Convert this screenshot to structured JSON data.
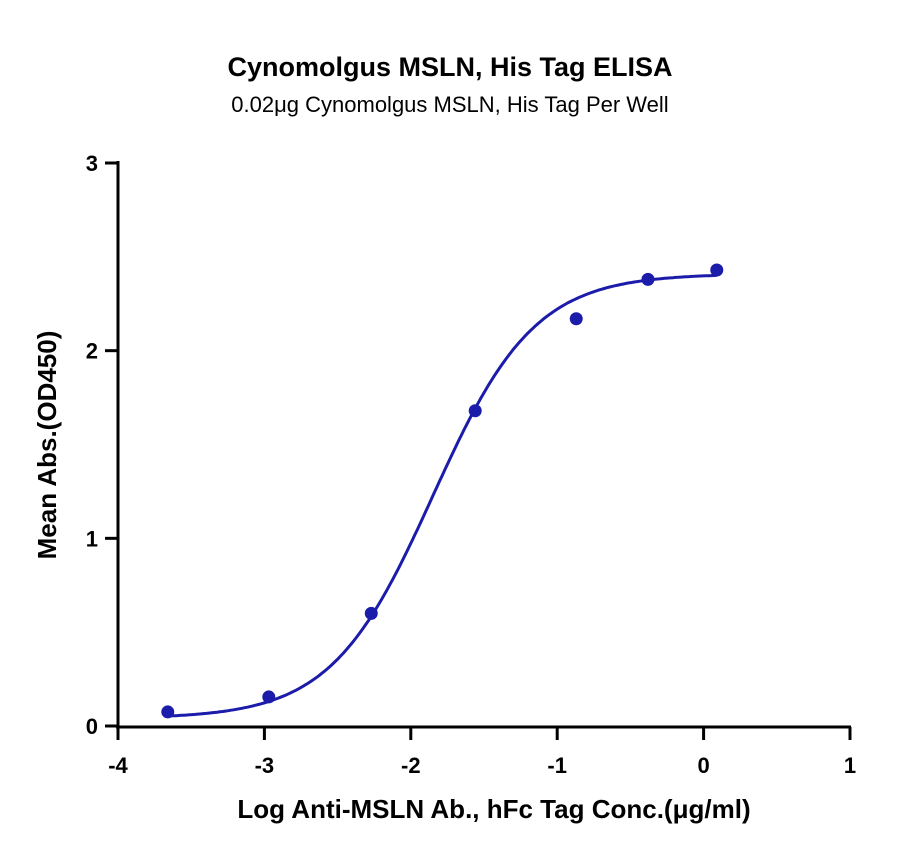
{
  "chart_data": {
    "type": "scatter",
    "title": "Cynomolgus MSLN, His Tag ELISA",
    "subtitle": "0.02μg Cynomolgus  MSLN, His Tag Per Well",
    "xlabel": "Log Anti-MSLN Ab., hFc Tag Conc.(μg/ml)",
    "ylabel": "Mean Abs.(OD450)",
    "xlim": [
      -4,
      1
    ],
    "ylim": [
      0,
      3
    ],
    "xticks": [
      "-4",
      "-3",
      "-2",
      "-1",
      "0",
      "1"
    ],
    "yticks": [
      "0",
      "1",
      "2",
      "3"
    ],
    "grid": false,
    "series": [
      {
        "x": [
          -3.66,
          -2.97,
          -2.27,
          -1.56,
          -0.87,
          -0.38,
          0.09
        ],
        "y": [
          0.075,
          0.155,
          0.6,
          1.68,
          2.17,
          2.38,
          2.43
        ],
        "fit": "4PL",
        "fit_params": {
          "bottom": 0.04,
          "top": 2.41,
          "logEC50": -1.85,
          "hill": 1.25
        }
      }
    ],
    "color": "#1c1caa"
  }
}
